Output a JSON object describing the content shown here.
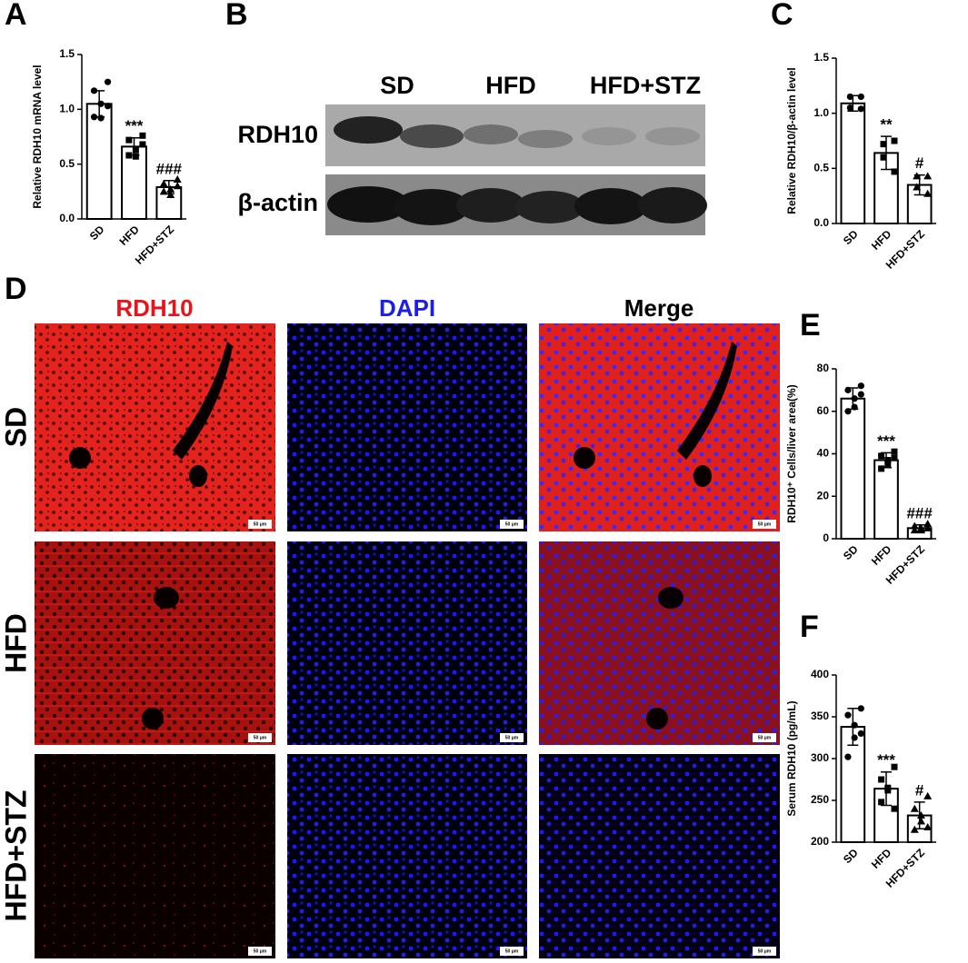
{
  "chart_data": [
    {
      "type": "bar",
      "panel_label": "A",
      "y_label": "Relative RDH10 mRNA level",
      "categories": [
        "SD",
        "HFD",
        "HFD+STZ"
      ],
      "values": [
        1.05,
        0.66,
        0.29
      ],
      "errors": [
        0.12,
        0.08,
        0.06
      ],
      "points": [
        [
          1.25,
          1.17,
          1.05,
          0.92,
          0.93,
          1.03
        ],
        [
          0.76,
          0.72,
          0.63,
          0.57,
          0.58,
          0.68
        ],
        [
          0.36,
          0.32,
          0.27,
          0.22,
          0.25,
          0.3
        ]
      ],
      "annotations": [
        {
          "category": "HFD",
          "text": "***"
        },
        {
          "category": "HFD+STZ",
          "text": "###"
        }
      ],
      "color": "#ffffff",
      "ylim": [
        0,
        1.5
      ],
      "yticks": [
        {
          "value": 0,
          "label": "0.0"
        },
        0.5,
        {
          "value": 1,
          "label": "1.0"
        },
        1.5
      ]
    },
    {
      "type": "bar",
      "panel_label": "C",
      "y_label": "Relative RDH10/β-actin level",
      "categories": [
        "SD",
        "HFD",
        "HFD+STZ"
      ],
      "values": [
        1.09,
        0.64,
        0.35
      ],
      "errors": [
        0.07,
        0.15,
        0.09
      ],
      "points": [
        [
          1.15,
          1.15,
          1.05,
          1.04
        ],
        [
          0.75,
          0.72,
          0.6,
          0.47
        ],
        [
          0.43,
          0.43,
          0.33,
          0.27
        ]
      ],
      "annotations": [
        {
          "category": "HFD",
          "text": "**"
        },
        {
          "category": "HFD+STZ",
          "text": "#"
        }
      ],
      "color": "#ffffff",
      "ylim": [
        0,
        1.5
      ],
      "yticks": [
        {
          "value": 0,
          "label": "0.0"
        },
        0.5,
        {
          "value": 1,
          "label": "1.0"
        },
        1.5
      ]
    },
    {
      "type": "bar",
      "panel_label": "E",
      "y_label": "RDH10⁺ Cells/liver area(%)",
      "categories": [
        "SD",
        "HFD",
        "HFD+STZ"
      ],
      "values": [
        66,
        37,
        5
      ],
      "errors": [
        5,
        3.5,
        1.5
      ],
      "points": [
        [
          72,
          70,
          66,
          62,
          60,
          68
        ],
        [
          41,
          39,
          37,
          35,
          33,
          38
        ],
        [
          7,
          6,
          5,
          4,
          4,
          5
        ]
      ],
      "annotations": [
        {
          "category": "HFD",
          "text": "***"
        },
        {
          "category": "HFD+STZ",
          "text": "###"
        }
      ],
      "color": "#ffffff",
      "ylim": [
        0,
        80
      ],
      "yticks": [
        0,
        20,
        40,
        60,
        80
      ]
    },
    {
      "type": "bar",
      "panel_label": "F",
      "y_label": "Serum RDH10 (pg/mL)",
      "categories": [
        "SD",
        "HFD",
        "HFD+STZ"
      ],
      "values": [
        338,
        264,
        232
      ],
      "errors": [
        22,
        20,
        16
      ],
      "points": [
        [
          360,
          352,
          340,
          325,
          302,
          330
        ],
        [
          290,
          275,
          265,
          262,
          248,
          240
        ],
        [
          255,
          240,
          232,
          225,
          215,
          218
        ]
      ],
      "annotations": [
        {
          "category": "HFD",
          "text": "***"
        },
        {
          "category": "HFD+STZ",
          "text": "#"
        }
      ],
      "color": "#ffffff",
      "ylim": [
        200,
        400
      ],
      "yticks": [
        200,
        250,
        300,
        350,
        400
      ]
    }
  ],
  "blot": {
    "panel_label": "B",
    "groups": [
      "SD",
      "HFD",
      "HFD+STZ"
    ],
    "rows": [
      "RDH10",
      "β-actin"
    ]
  },
  "images": {
    "panel_label": "D",
    "columns": [
      "RDH10",
      "DAPI",
      "Merge"
    ],
    "rows": [
      "SD",
      "HFD",
      "HFD+STZ"
    ],
    "scale_bar": "50 μm"
  }
}
